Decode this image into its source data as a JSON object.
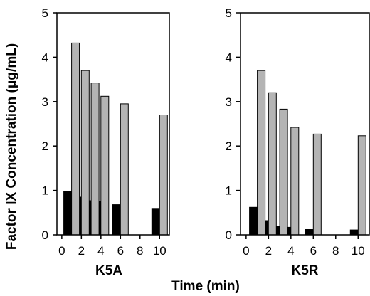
{
  "chart_data": {
    "type": "bar",
    "ylabel": "Factor IX Concentration (μg/mL)",
    "xlabel": "Time (min)",
    "colors": {
      "dark": "#000000",
      "light": "#b4b4b4"
    },
    "panels": [
      {
        "label": "K5A",
        "xticks": [
          0,
          2,
          4,
          6,
          8,
          10
        ],
        "yticks": [
          0,
          1,
          2,
          3,
          4,
          5
        ],
        "xlim": [
          -0.5,
          11
        ],
        "ylim": [
          0,
          5
        ],
        "series": [
          {
            "color": "dark",
            "x": [
              1,
              2,
              3,
              4,
              6,
              10
            ],
            "values": [
              0.97,
              0.85,
              0.77,
              0.75,
              0.68,
              0.58
            ]
          },
          {
            "color": "light",
            "x": [
              1,
              2,
              3,
              4,
              6,
              10
            ],
            "values": [
              4.32,
              3.7,
              3.42,
              3.12,
              2.95,
              2.7
            ]
          }
        ]
      },
      {
        "label": "K5R",
        "xticks": [
          0,
          2,
          4,
          6,
          8,
          10
        ],
        "yticks": [
          0,
          1,
          2,
          3,
          4,
          5
        ],
        "xlim": [
          -0.5,
          11
        ],
        "ylim": [
          0,
          5
        ],
        "series": [
          {
            "color": "dark",
            "x": [
              1,
              2,
              3,
              4,
              6,
              10
            ],
            "values": [
              0.62,
              0.32,
              0.2,
              0.17,
              0.12,
              0.11
            ]
          },
          {
            "color": "light",
            "x": [
              1,
              2,
              3,
              4,
              6,
              10
            ],
            "values": [
              3.7,
              3.2,
              2.83,
              2.42,
              2.27,
              2.23
            ]
          }
        ]
      }
    ]
  }
}
